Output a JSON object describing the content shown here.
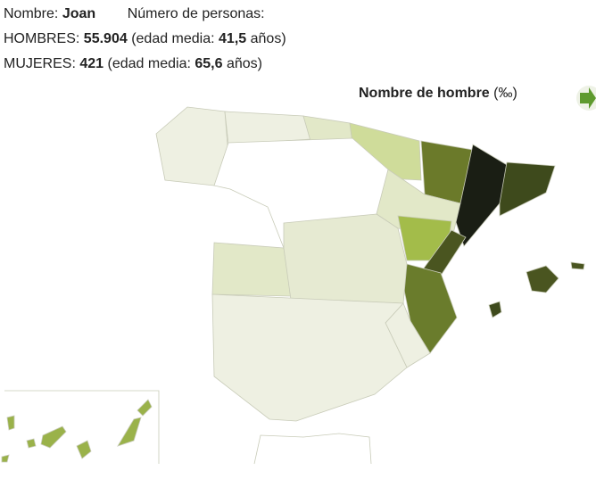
{
  "header": {
    "name_label": "Nombre:",
    "name": "Joan",
    "count_label": "Número de personas:"
  },
  "men": {
    "label": "HOMBRES:",
    "count": "55.904",
    "age_label": "(edad media:",
    "age": "41,5",
    "age_unit": "años)"
  },
  "women": {
    "label": "MUJERES:",
    "count": "421",
    "age_label": "(edad media:",
    "age": "65,6",
    "age_unit": "años)"
  },
  "map": {
    "title": "Nombre de hombre",
    "unit": "(‰)"
  }
}
